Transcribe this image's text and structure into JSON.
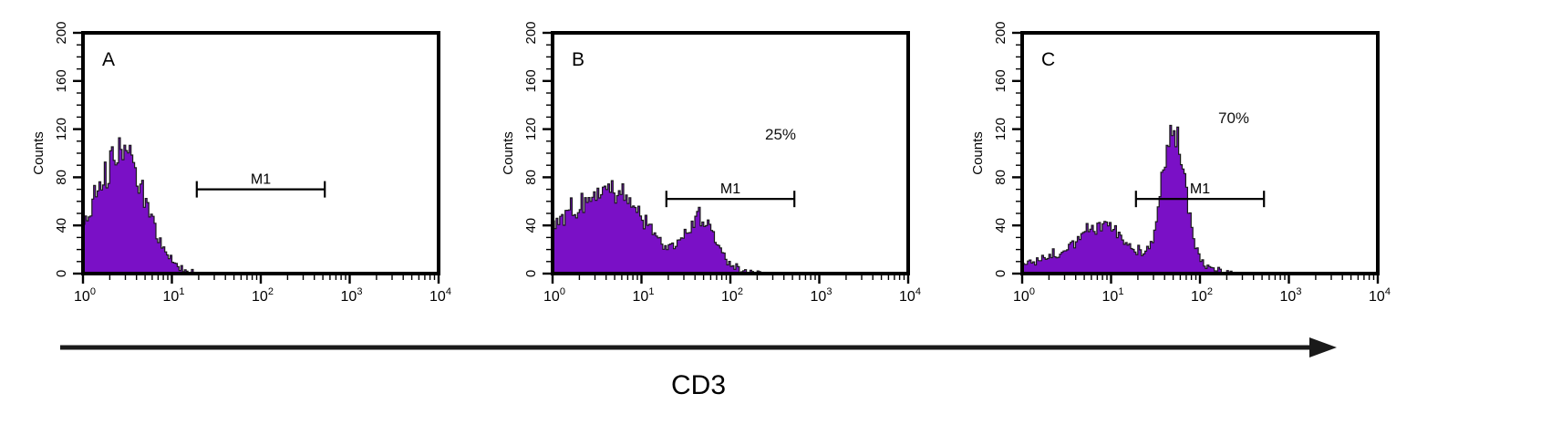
{
  "figure": {
    "xaxis_label": "CD3",
    "fill_color": "#7a10c6",
    "outline_color": "#1a1a1a",
    "axis_color": "#000000"
  },
  "chart_data": [
    {
      "type": "area",
      "panel": "A",
      "ylabel": "Counts",
      "ylim": [
        0,
        200
      ],
      "yticks": [
        0,
        40,
        80,
        120,
        160,
        200
      ],
      "x_scale": "log10",
      "xlim_log": [
        0,
        4
      ],
      "xtick_exponents": [
        0,
        1,
        2,
        3,
        4
      ],
      "gate": {
        "label": "M1",
        "from_log": 1.28,
        "to_log": 2.72,
        "y_counts": 70
      },
      "percent": "",
      "cutoff_log": 1.5,
      "series_peaks": [
        {
          "center_log": 0.45,
          "height": 92,
          "sigma_log": 0.26
        },
        {
          "center_log": 0.05,
          "height": 20,
          "sigma_log": 0.25
        }
      ]
    },
    {
      "type": "area",
      "panel": "B",
      "ylabel": "Counts",
      "ylim": [
        0,
        200
      ],
      "yticks": [
        0,
        40,
        80,
        120,
        160,
        200
      ],
      "x_scale": "log10",
      "xlim_log": [
        0,
        4
      ],
      "xtick_exponents": [
        0,
        1,
        2,
        3,
        4
      ],
      "gate": {
        "label": "M1",
        "from_log": 1.28,
        "to_log": 2.72,
        "y_counts": 62
      },
      "percent": "25%",
      "cutoff_log": 2.35,
      "series_peaks": [
        {
          "center_log": 0.0,
          "height": 15,
          "sigma_log": 0.2
        },
        {
          "center_log": 0.35,
          "height": 40,
          "sigma_log": 0.3
        },
        {
          "center_log": 0.8,
          "height": 42,
          "sigma_log": 0.28
        },
        {
          "center_log": 1.1,
          "height": 10,
          "sigma_log": 0.6
        },
        {
          "center_log": 1.65,
          "height": 40,
          "sigma_log": 0.16
        }
      ]
    },
    {
      "type": "area",
      "panel": "C",
      "ylabel": "Counts",
      "ylim": [
        0,
        200
      ],
      "yticks": [
        0,
        40,
        80,
        120,
        160,
        200
      ],
      "x_scale": "log10",
      "xlim_log": [
        0,
        4
      ],
      "xtick_exponents": [
        0,
        1,
        2,
        3,
        4
      ],
      "gate": {
        "label": "M1",
        "from_log": 1.28,
        "to_log": 2.72,
        "y_counts": 62
      },
      "percent": "70%",
      "cutoff_log": 2.35,
      "series_peaks": [
        {
          "center_log": 0.3,
          "height": 8,
          "sigma_log": 0.4
        },
        {
          "center_log": 0.9,
          "height": 30,
          "sigma_log": 0.25
        },
        {
          "center_log": 1.2,
          "height": 8,
          "sigma_log": 0.7
        },
        {
          "center_log": 1.7,
          "height": 110,
          "sigma_log": 0.13
        }
      ]
    }
  ]
}
